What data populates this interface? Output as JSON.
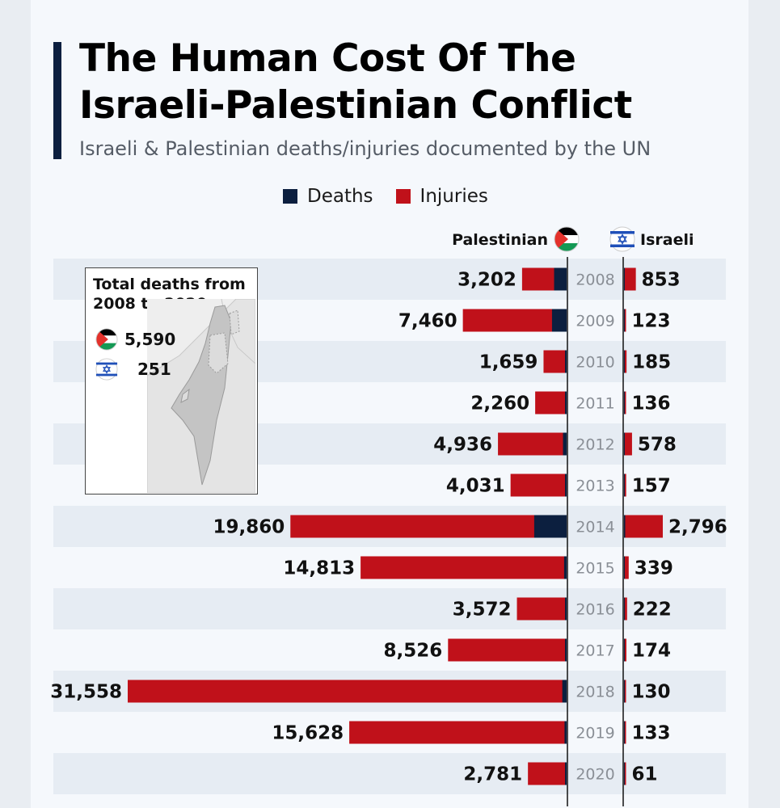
{
  "title_line1": "The Human Cost Of The",
  "title_line2": "Israeli-Palestinian Conflict",
  "subtitle": "Israeli & Palestinian deaths/injuries documented by the UN",
  "legend": {
    "deaths": "Deaths",
    "injuries": "Injuries"
  },
  "colors": {
    "deaths": "#0c1f3f",
    "injuries": "#c0111a",
    "accent_bar": "#0c1f3f",
    "band": "#e6ecf3"
  },
  "column_headers": {
    "palestinian": "Palestinian",
    "israeli": "Israeli"
  },
  "inset": {
    "title_line1": "Total deaths from",
    "title_line2": "2008 to 2020",
    "palestinian_deaths": "5,590",
    "israeli_deaths": "251",
    "palestinian_flag_icon": "palestine-flag-icon",
    "israeli_flag_icon": "israel-flag-icon",
    "map_icon": "israel-palestine-map-icon"
  },
  "chart_data": {
    "type": "bar",
    "orientation": "horizontal-diverging",
    "categories": [
      "2008",
      "2009",
      "2010",
      "2011",
      "2012",
      "2013",
      "2014",
      "2015",
      "2016",
      "2017",
      "2018",
      "2019",
      "2020"
    ],
    "series": [
      {
        "name": "Palestinian",
        "total": [
          3202,
          7460,
          1659,
          2260,
          4936,
          4031,
          19860,
          14813,
          3572,
          8526,
          31558,
          15628,
          2781
        ],
        "labels": [
          "3,202",
          "7,460",
          "1,659",
          "2,260",
          "4,936",
          "4,031",
          "19,860",
          "14,813",
          "3,572",
          "8,526",
          "31,558",
          "15,628",
          "2,781"
        ],
        "deaths_estimated": [
          900,
          1050,
          95,
          110,
          260,
          60,
          2330,
          180,
          110,
          80,
          310,
          150,
          35
        ]
      },
      {
        "name": "Israeli",
        "total": [
          853,
          123,
          185,
          136,
          578,
          157,
          2796,
          339,
          222,
          174,
          130,
          133,
          61
        ],
        "labels": [
          "853",
          "123",
          "185",
          "136",
          "578",
          "157",
          "2,796",
          "339",
          "222",
          "174",
          "130",
          "133",
          "61"
        ],
        "deaths_estimated": [
          35,
          9,
          9,
          11,
          7,
          6,
          88,
          28,
          17,
          15,
          14,
          10,
          3
        ]
      }
    ]
  }
}
